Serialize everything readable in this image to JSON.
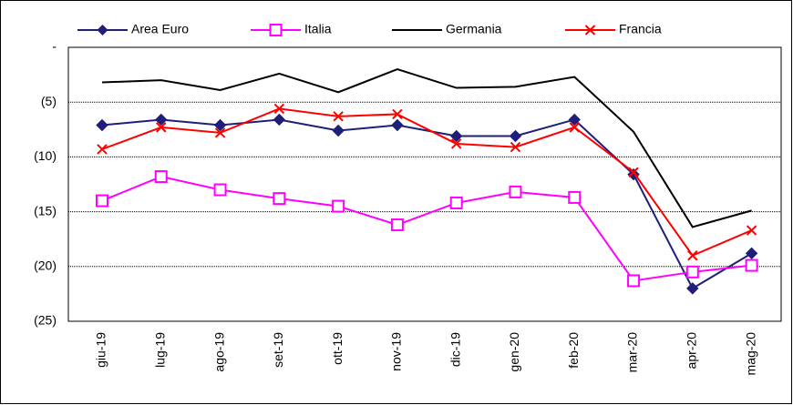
{
  "chart_data": {
    "type": "line",
    "categories": [
      "giu-19",
      "lug-19",
      "ago-19",
      "set-19",
      "ott-19",
      "nov-19",
      "dic-19",
      "gen-20",
      "feb-20",
      "mar-20",
      "apr-20",
      "mag-20"
    ],
    "series": [
      {
        "name": "Area Euro",
        "color": "#1f1f7a",
        "marker": "diamond",
        "values": [
          -7.1,
          -6.6,
          -7.1,
          -6.6,
          -7.6,
          -7.1,
          -8.1,
          -8.1,
          -6.6,
          -11.6,
          -22.0,
          -18.8
        ]
      },
      {
        "name": "Italia",
        "color": "#ff00ff",
        "marker": "square",
        "values": [
          -14.0,
          -11.8,
          -13.0,
          -13.8,
          -14.5,
          -16.2,
          -14.2,
          -13.2,
          -13.7,
          -21.3,
          -20.5,
          -19.9
        ]
      },
      {
        "name": "Germania",
        "color": "#000000",
        "marker": "none",
        "values": [
          -3.2,
          -3.0,
          -3.9,
          -2.4,
          -4.1,
          -2.0,
          -3.7,
          -3.6,
          -2.7,
          -7.7,
          -16.4,
          -14.9
        ]
      },
      {
        "name": "Francia",
        "color": "#ff0000",
        "marker": "x",
        "values": [
          -9.3,
          -7.3,
          -7.8,
          -5.6,
          -6.3,
          -6.1,
          -8.8,
          -9.1,
          -7.3,
          -11.4,
          -19.0,
          -16.7
        ]
      }
    ],
    "ylim": [
      -25,
      0
    ],
    "yticks": [
      {
        "value": 0,
        "label": "-"
      },
      {
        "value": -5,
        "label": "(5)"
      },
      {
        "value": -10,
        "label": "(10)"
      },
      {
        "value": -15,
        "label": "(15)"
      },
      {
        "value": -20,
        "label": "(20)"
      },
      {
        "value": -25,
        "label": "(25)"
      }
    ],
    "grid": true,
    "legend": "top"
  }
}
